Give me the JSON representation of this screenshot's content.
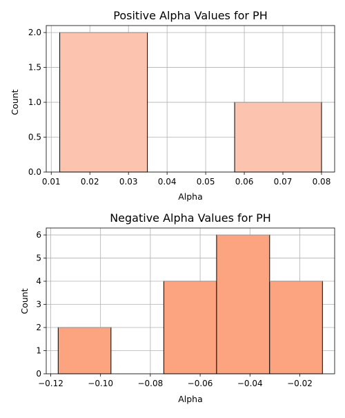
{
  "chart_data": [
    {
      "type": "bar",
      "title": "Positive Alpha Values for PH",
      "xlabel": "Alpha",
      "ylabel": "Count",
      "xlim": [
        0.0087,
        0.0834
      ],
      "ylim": [
        0,
        2.1
      ],
      "xticks": [
        0.01,
        0.02,
        0.03,
        0.04,
        0.05,
        0.06,
        0.07,
        0.08
      ],
      "xtick_labels": [
        "0.01",
        "0.02",
        "0.03",
        "0.04",
        "0.05",
        "0.06",
        "0.07",
        "0.08"
      ],
      "yticks": [
        0,
        0.5,
        1,
        1.5,
        2
      ],
      "ytick_labels": [
        "0.0",
        "0.5",
        "1.0",
        "1.5",
        "2.0"
      ],
      "bins": [
        {
          "x0": 0.0122,
          "x1": 0.0349,
          "value": 2
        },
        {
          "x0": 0.0349,
          "x1": 0.0575,
          "value": 0
        },
        {
          "x0": 0.0575,
          "x1": 0.08,
          "value": 1
        }
      ],
      "bar_color": "#fcc4ae",
      "edge_color": "#000000",
      "grid": true
    },
    {
      "type": "bar",
      "title": "Negative Alpha Values for PH",
      "xlabel": "Alpha",
      "ylabel": "Count",
      "xlim": [
        -0.1218,
        -0.006
      ],
      "ylim": [
        0,
        6.3
      ],
      "xticks": [
        -0.12,
        -0.1,
        -0.08,
        -0.06,
        -0.04,
        -0.02
      ],
      "xtick_labels": [
        "−0.12",
        "−0.10",
        "−0.08",
        "−0.06",
        "−0.04",
        "−0.02"
      ],
      "yticks": [
        0,
        1,
        2,
        3,
        4,
        5,
        6
      ],
      "ytick_labels": [
        "0",
        "1",
        "2",
        "3",
        "4",
        "5",
        "6"
      ],
      "bins": [
        {
          "x0": -0.117,
          "x1": -0.0958,
          "value": 2
        },
        {
          "x0": -0.0958,
          "x1": -0.0746,
          "value": 0
        },
        {
          "x0": -0.0746,
          "x1": -0.0534,
          "value": 4
        },
        {
          "x0": -0.0534,
          "x1": -0.0321,
          "value": 6
        },
        {
          "x0": -0.0321,
          "x1": -0.0109,
          "value": 4
        }
      ],
      "bar_color": "#fca480",
      "edge_color": "#000000",
      "grid": true
    }
  ]
}
